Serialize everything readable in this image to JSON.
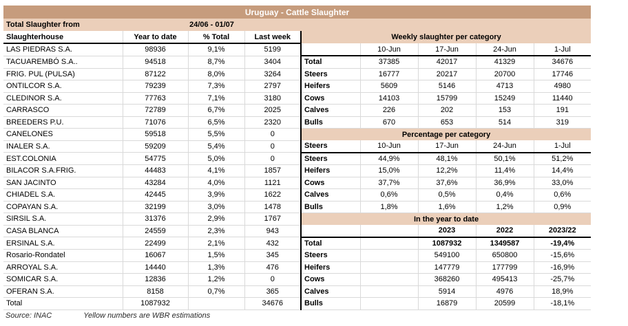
{
  "title": "Uruguay - Cattle Slaughter",
  "subheader": {
    "label": "Total Slaughter from",
    "period": "24/06 - 01/07"
  },
  "left_table": {
    "headers": [
      "Slaughterhouse",
      "Year to date",
      "% Total",
      "Last week"
    ],
    "rows": [
      [
        "LAS PIEDRAS S.A.",
        "98936",
        "9,1%",
        "5199"
      ],
      [
        "TACUAREMBÓ S.A..",
        "94518",
        "8,7%",
        "3404"
      ],
      [
        "FRIG. PUL (PULSA)",
        "87122",
        "8,0%",
        "3264"
      ],
      [
        "ONTILCOR S.A.",
        "79239",
        "7,3%",
        "2797"
      ],
      [
        "CLEDINOR S.A.",
        "77763",
        "7,1%",
        "3180"
      ],
      [
        "CARRASCO",
        "72789",
        "6,7%",
        "2025"
      ],
      [
        "BREEDERS P.U.",
        "71076",
        "6,5%",
        "2320"
      ],
      [
        "CANELONES",
        "59518",
        "5,5%",
        "0"
      ],
      [
        "INALER S.A.",
        "59209",
        "5,4%",
        "0"
      ],
      [
        "EST.COLONIA",
        "54775",
        "5,0%",
        "0"
      ],
      [
        "BILACOR S.A.FRIG.",
        "44483",
        "4,1%",
        "1857"
      ],
      [
        "SAN JACINTO",
        "43284",
        "4,0%",
        "1121"
      ],
      [
        "CHIADEL S.A.",
        "42445",
        "3,9%",
        "1622"
      ],
      [
        "COPAYAN S.A.",
        "32199",
        "3,0%",
        "1478"
      ],
      [
        "SIRSIL S.A.",
        "31376",
        "2,9%",
        "1767"
      ],
      [
        "CASA BLANCA",
        "24559",
        "2,3%",
        "943"
      ],
      [
        "ERSINAL S.A.",
        "22499",
        "2,1%",
        "432"
      ],
      [
        "Rosario-Rondatel",
        "16067",
        "1,5%",
        "345"
      ],
      [
        "ARROYAL S.A.",
        "14440",
        "1,3%",
        "476"
      ],
      [
        "SOMICAR S.A.",
        "12836",
        "1,2%",
        "0"
      ],
      [
        "OFERAN S.A.",
        "8158",
        "0,7%",
        "365"
      ],
      [
        "Total",
        "1087932",
        "",
        "34676"
      ]
    ]
  },
  "right_table": {
    "weekly": {
      "title": "Weekly slaughter per category",
      "columns": [
        "10-Jun",
        "17-Jun",
        "24-Jun",
        "1-Jul"
      ],
      "rows": [
        {
          "label": "Total",
          "values": [
            "37385",
            "42017",
            "41329",
            "34676"
          ]
        },
        {
          "label": "Steers",
          "values": [
            "16777",
            "20217",
            "20700",
            "17746"
          ]
        },
        {
          "label": "Heifers",
          "values": [
            "5609",
            "5146",
            "4713",
            "4980"
          ]
        },
        {
          "label": "Cows",
          "values": [
            "14103",
            "15799",
            "15249",
            "11440"
          ]
        },
        {
          "label": "Calves",
          "values": [
            "226",
            "202",
            "153",
            "191"
          ]
        },
        {
          "label": "Bulls",
          "values": [
            "670",
            "653",
            "514",
            "319"
          ]
        }
      ]
    },
    "percentage": {
      "title": "Percentage per category",
      "header_label": "Steers",
      "columns": [
        "10-Jun",
        "17-Jun",
        "24-Jun",
        "1-Jul"
      ],
      "rows": [
        {
          "label": "Steers",
          "values": [
            "44,9%",
            "48,1%",
            "50,1%",
            "51,2%"
          ]
        },
        {
          "label": "Heifers",
          "values": [
            "15,0%",
            "12,2%",
            "11,4%",
            "14,4%"
          ]
        },
        {
          "label": "Cows",
          "values": [
            "37,7%",
            "37,6%",
            "36,9%",
            "33,0%"
          ]
        },
        {
          "label": "Calves",
          "values": [
            "0,6%",
            "0,5%",
            "0,4%",
            "0,6%"
          ]
        },
        {
          "label": "Bulls",
          "values": [
            "1,8%",
            "1,6%",
            "1,2%",
            "0,9%"
          ]
        }
      ]
    },
    "ytd": {
      "title": "In the year to date",
      "columns": [
        "2023",
        "2022",
        "2023/22"
      ],
      "rows": [
        {
          "label": "Total",
          "values": [
            "1087932",
            "1349587",
            "-19,4%"
          ],
          "bold": true
        },
        {
          "label": "Steers",
          "values": [
            "549100",
            "650800",
            "-15,6%"
          ]
        },
        {
          "label": "Heifers",
          "values": [
            "147779",
            "177799",
            "-16,9%"
          ]
        },
        {
          "label": "Cows",
          "values": [
            "368260",
            "495413",
            "-25,7%"
          ]
        },
        {
          "label": "Calves",
          "values": [
            "5914",
            "4976",
            "18,9%"
          ]
        },
        {
          "label": "Bulls",
          "values": [
            "16879",
            "20599",
            "-18,1%"
          ]
        }
      ]
    }
  },
  "footer": {
    "source": "Source: INAC",
    "note": "Yellow numbers are WBR estimations"
  },
  "colors": {
    "title_bg": "#c69c7d",
    "band_bg": "#ebcfba"
  }
}
